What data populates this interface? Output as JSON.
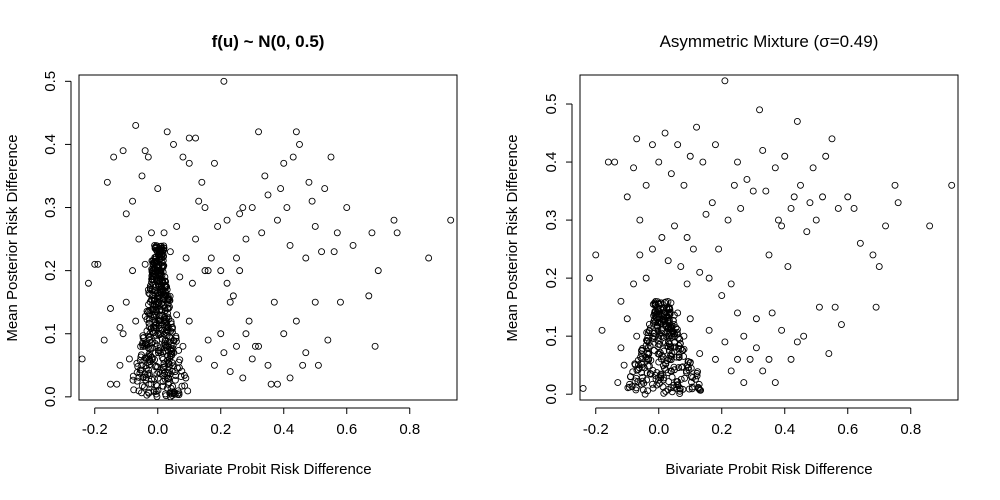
{
  "chart_data": [
    {
      "type": "scatter",
      "title": "f(u) ~ N(0, 0.5)",
      "title_bold": true,
      "xlabel": "Bivariate Probit Risk Difference",
      "ylabel": "Mean Posterior Risk Difference",
      "xlim": [
        -0.25,
        0.95
      ],
      "ylim": [
        -0.005,
        0.51
      ],
      "xticks": [
        -0.2,
        0.0,
        0.2,
        0.4,
        0.6,
        0.8
      ],
      "xtick_labels": [
        "-0.2",
        "0.0",
        "0.2",
        "0.4",
        "0.6",
        "0.8"
      ],
      "yticks": [
        0.0,
        0.1,
        0.2,
        0.3,
        0.4,
        0.5
      ],
      "ytick_labels": [
        "0.0",
        "0.1",
        "0.2",
        "0.3",
        "0.4",
        "0.5"
      ],
      "marker": "open-circle",
      "points": [
        [
          -0.24,
          0.06
        ],
        [
          -0.22,
          0.18
        ],
        [
          -0.2,
          0.21
        ],
        [
          -0.19,
          0.21
        ],
        [
          -0.17,
          0.09
        ],
        [
          -0.16,
          0.34
        ],
        [
          -0.15,
          0.02
        ],
        [
          -0.15,
          0.14
        ],
        [
          -0.14,
          0.38
        ],
        [
          -0.12,
          0.11
        ],
        [
          -0.11,
          0.39
        ],
        [
          -0.1,
          0.29
        ],
        [
          -0.08,
          0.31
        ],
        [
          -0.07,
          0.43
        ],
        [
          -0.05,
          0.35
        ],
        [
          -0.04,
          0.39
        ],
        [
          -0.03,
          0.38
        ],
        [
          0.0,
          0.33
        ],
        [
          0.03,
          0.42
        ],
        [
          0.05,
          0.4
        ],
        [
          0.06,
          0.27
        ],
        [
          0.08,
          0.38
        ],
        [
          0.1,
          0.41
        ],
        [
          0.1,
          0.37
        ],
        [
          0.12,
          0.41
        ],
        [
          0.13,
          0.31
        ],
        [
          0.14,
          0.34
        ],
        [
          0.15,
          0.3
        ],
        [
          0.16,
          0.2
        ],
        [
          0.18,
          0.37
        ],
        [
          0.19,
          0.27
        ],
        [
          0.2,
          0.1
        ],
        [
          0.21,
          0.5
        ],
        [
          0.22,
          0.28
        ],
        [
          0.23,
          0.15
        ],
        [
          0.25,
          0.22
        ],
        [
          0.26,
          0.29
        ],
        [
          0.27,
          0.3
        ],
        [
          0.28,
          0.25
        ],
        [
          0.29,
          0.12
        ],
        [
          0.3,
          0.3
        ],
        [
          0.31,
          0.08
        ],
        [
          0.32,
          0.42
        ],
        [
          0.33,
          0.26
        ],
        [
          0.34,
          0.35
        ],
        [
          0.35,
          0.32
        ],
        [
          0.36,
          0.02
        ],
        [
          0.37,
          0.15
        ],
        [
          0.38,
          0.28
        ],
        [
          0.39,
          0.33
        ],
        [
          0.4,
          0.37
        ],
        [
          0.41,
          0.3
        ],
        [
          0.42,
          0.24
        ],
        [
          0.43,
          0.38
        ],
        [
          0.44,
          0.42
        ],
        [
          0.45,
          0.4
        ],
        [
          0.46,
          0.05
        ],
        [
          0.47,
          0.22
        ],
        [
          0.48,
          0.34
        ],
        [
          0.49,
          0.31
        ],
        [
          0.5,
          0.27
        ],
        [
          0.51,
          0.05
        ],
        [
          0.52,
          0.23
        ],
        [
          0.53,
          0.33
        ],
        [
          0.54,
          0.09
        ],
        [
          0.55,
          0.38
        ],
        [
          0.56,
          0.23
        ],
        [
          0.57,
          0.26
        ],
        [
          0.58,
          0.15
        ],
        [
          0.6,
          0.3
        ],
        [
          0.62,
          0.24
        ],
        [
          0.67,
          0.16
        ],
        [
          0.68,
          0.26
        ],
        [
          0.69,
          0.08
        ],
        [
          0.7,
          0.2
        ],
        [
          0.75,
          0.28
        ],
        [
          0.76,
          0.26
        ],
        [
          0.86,
          0.22
        ],
        [
          0.93,
          0.28
        ],
        [
          0.01,
          0.2
        ],
        [
          0.02,
          0.26
        ],
        [
          -0.01,
          0.24
        ],
        [
          0.03,
          0.17
        ],
        [
          0.04,
          0.23
        ],
        [
          0.07,
          0.19
        ],
        [
          0.09,
          0.22
        ],
        [
          0.11,
          0.18
        ],
        [
          0.12,
          0.25
        ],
        [
          0.15,
          0.2
        ],
        [
          0.17,
          0.22
        ],
        [
          0.2,
          0.2
        ],
        [
          0.22,
          0.18
        ],
        [
          0.24,
          0.16
        ],
        [
          0.26,
          0.2
        ],
        [
          0.28,
          0.1
        ],
        [
          0.3,
          0.06
        ],
        [
          0.32,
          0.08
        ],
        [
          0.35,
          0.05
        ],
        [
          0.38,
          0.02
        ],
        [
          0.4,
          0.1
        ],
        [
          0.42,
          0.03
        ],
        [
          0.44,
          0.12
        ],
        [
          0.47,
          0.07
        ],
        [
          0.5,
          0.15
        ],
        [
          -0.02,
          0.26
        ],
        [
          -0.04,
          0.21
        ],
        [
          -0.06,
          0.25
        ],
        [
          -0.08,
          0.2
        ],
        [
          -0.1,
          0.15
        ],
        [
          -0.11,
          0.1
        ],
        [
          -0.12,
          0.05
        ],
        [
          -0.13,
          0.02
        ],
        [
          -0.09,
          0.06
        ],
        [
          -0.07,
          0.12
        ],
        [
          0.06,
          0.13
        ],
        [
          0.08,
          0.08
        ],
        [
          0.1,
          0.12
        ],
        [
          0.13,
          0.06
        ],
        [
          0.16,
          0.09
        ],
        [
          0.18,
          0.05
        ],
        [
          0.21,
          0.07
        ],
        [
          0.23,
          0.04
        ],
        [
          0.25,
          0.08
        ],
        [
          0.27,
          0.03
        ]
      ],
      "dense_cloud": {
        "bands": [
          {
            "y": 0.01,
            "x_min": -0.08,
            "x_max": 0.1
          },
          {
            "y": 0.03,
            "x_min": -0.08,
            "x_max": 0.09
          },
          {
            "y": 0.05,
            "x_min": -0.07,
            "x_max": 0.08
          },
          {
            "y": 0.07,
            "x_min": -0.06,
            "x_max": 0.07
          },
          {
            "y": 0.09,
            "x_min": -0.05,
            "x_max": 0.06
          },
          {
            "y": 0.11,
            "x_min": -0.04,
            "x_max": 0.05
          },
          {
            "y": 0.13,
            "x_min": -0.04,
            "x_max": 0.04
          },
          {
            "y": 0.15,
            "x_min": -0.03,
            "x_max": 0.04
          },
          {
            "y": 0.17,
            "x_min": -0.03,
            "x_max": 0.03
          },
          {
            "y": 0.19,
            "x_min": -0.02,
            "x_max": 0.03
          },
          {
            "y": 0.21,
            "x_min": -0.02,
            "x_max": 0.02
          },
          {
            "y": 0.23,
            "x_min": -0.01,
            "x_max": 0.02
          }
        ]
      }
    },
    {
      "type": "scatter",
      "title": "Asymmetric Mixture (σ=0.49)",
      "title_bold": false,
      "xlabel": "Bivariate Probit Risk Difference",
      "ylabel": "Mean Posterior Risk Difference",
      "xlim": [
        -0.25,
        0.95
      ],
      "ylim": [
        -0.01,
        0.55
      ],
      "xticks": [
        -0.2,
        0.0,
        0.2,
        0.4,
        0.6,
        0.8
      ],
      "xtick_labels": [
        "-0.2",
        "0.0",
        "0.2",
        "0.4",
        "0.6",
        "0.8"
      ],
      "yticks": [
        0.0,
        0.1,
        0.2,
        0.3,
        0.4,
        0.5
      ],
      "ytick_labels": [
        "0.0",
        "0.1",
        "0.2",
        "0.3",
        "0.4",
        "0.5"
      ],
      "marker": "open-circle",
      "points": [
        [
          -0.24,
          0.01
        ],
        [
          -0.22,
          0.2
        ],
        [
          -0.2,
          0.24
        ],
        [
          -0.18,
          0.11
        ],
        [
          -0.16,
          0.4
        ],
        [
          -0.14,
          0.4
        ],
        [
          -0.12,
          0.16
        ],
        [
          -0.1,
          0.34
        ],
        [
          -0.08,
          0.39
        ],
        [
          -0.07,
          0.44
        ],
        [
          -0.06,
          0.3
        ],
        [
          -0.04,
          0.36
        ],
        [
          -0.02,
          0.43
        ],
        [
          0.0,
          0.4
        ],
        [
          0.02,
          0.45
        ],
        [
          0.04,
          0.38
        ],
        [
          0.06,
          0.43
        ],
        [
          0.08,
          0.36
        ],
        [
          0.09,
          0.27
        ],
        [
          0.1,
          0.41
        ],
        [
          0.12,
          0.46
        ],
        [
          0.14,
          0.4
        ],
        [
          0.15,
          0.31
        ],
        [
          0.17,
          0.33
        ],
        [
          0.18,
          0.43
        ],
        [
          0.19,
          0.25
        ],
        [
          0.21,
          0.54
        ],
        [
          0.22,
          0.3
        ],
        [
          0.24,
          0.36
        ],
        [
          0.25,
          0.4
        ],
        [
          0.26,
          0.32
        ],
        [
          0.28,
          0.37
        ],
        [
          0.3,
          0.35
        ],
        [
          0.31,
          0.13
        ],
        [
          0.32,
          0.49
        ],
        [
          0.33,
          0.42
        ],
        [
          0.34,
          0.35
        ],
        [
          0.35,
          0.24
        ],
        [
          0.36,
          0.14
        ],
        [
          0.37,
          0.39
        ],
        [
          0.38,
          0.3
        ],
        [
          0.39,
          0.29
        ],
        [
          0.4,
          0.41
        ],
        [
          0.41,
          0.22
        ],
        [
          0.42,
          0.32
        ],
        [
          0.43,
          0.34
        ],
        [
          0.44,
          0.47
        ],
        [
          0.45,
          0.36
        ],
        [
          0.46,
          0.1
        ],
        [
          0.47,
          0.28
        ],
        [
          0.48,
          0.33
        ],
        [
          0.49,
          0.39
        ],
        [
          0.5,
          0.3
        ],
        [
          0.51,
          0.15
        ],
        [
          0.52,
          0.34
        ],
        [
          0.53,
          0.41
        ],
        [
          0.54,
          0.07
        ],
        [
          0.55,
          0.44
        ],
        [
          0.56,
          0.15
        ],
        [
          0.57,
          0.32
        ],
        [
          0.58,
          0.12
        ],
        [
          0.6,
          0.34
        ],
        [
          0.62,
          0.32
        ],
        [
          0.64,
          0.26
        ],
        [
          0.68,
          0.24
        ],
        [
          0.69,
          0.15
        ],
        [
          0.7,
          0.22
        ],
        [
          0.72,
          0.29
        ],
        [
          0.75,
          0.36
        ],
        [
          0.76,
          0.33
        ],
        [
          0.86,
          0.29
        ],
        [
          0.93,
          0.36
        ],
        [
          0.01,
          0.27
        ],
        [
          0.03,
          0.23
        ],
        [
          0.05,
          0.29
        ],
        [
          0.07,
          0.22
        ],
        [
          0.09,
          0.19
        ],
        [
          0.11,
          0.25
        ],
        [
          0.13,
          0.21
        ],
        [
          0.16,
          0.2
        ],
        [
          0.2,
          0.17
        ],
        [
          0.23,
          0.19
        ],
        [
          0.25,
          0.14
        ],
        [
          0.27,
          0.1
        ],
        [
          0.29,
          0.06
        ],
        [
          0.31,
          0.08
        ],
        [
          0.33,
          0.04
        ],
        [
          0.35,
          0.06
        ],
        [
          0.37,
          0.02
        ],
        [
          0.39,
          0.11
        ],
        [
          0.42,
          0.06
        ],
        [
          0.44,
          0.09
        ],
        [
          -0.02,
          0.25
        ],
        [
          -0.04,
          0.2
        ],
        [
          -0.06,
          0.24
        ],
        [
          -0.08,
          0.19
        ],
        [
          -0.1,
          0.13
        ],
        [
          -0.12,
          0.08
        ],
        [
          -0.13,
          0.02
        ],
        [
          -0.11,
          0.05
        ],
        [
          -0.09,
          0.03
        ],
        [
          -0.07,
          0.1
        ],
        [
          0.06,
          0.14
        ],
        [
          0.08,
          0.1
        ],
        [
          0.1,
          0.13
        ],
        [
          0.13,
          0.07
        ],
        [
          0.16,
          0.11
        ],
        [
          0.18,
          0.06
        ],
        [
          0.21,
          0.09
        ],
        [
          0.23,
          0.04
        ],
        [
          0.25,
          0.06
        ],
        [
          0.27,
          0.02
        ]
      ],
      "dense_cloud": {
        "bands": [
          {
            "y": 0.01,
            "x_min": -0.1,
            "x_max": 0.15
          },
          {
            "y": 0.03,
            "x_min": -0.09,
            "x_max": 0.13
          },
          {
            "y": 0.05,
            "x_min": -0.08,
            "x_max": 0.11
          },
          {
            "y": 0.07,
            "x_min": -0.06,
            "x_max": 0.09
          },
          {
            "y": 0.09,
            "x_min": -0.05,
            "x_max": 0.07
          },
          {
            "y": 0.11,
            "x_min": -0.04,
            "x_max": 0.06
          },
          {
            "y": 0.13,
            "x_min": -0.03,
            "x_max": 0.05
          },
          {
            "y": 0.15,
            "x_min": -0.02,
            "x_max": 0.04
          }
        ]
      }
    }
  ]
}
